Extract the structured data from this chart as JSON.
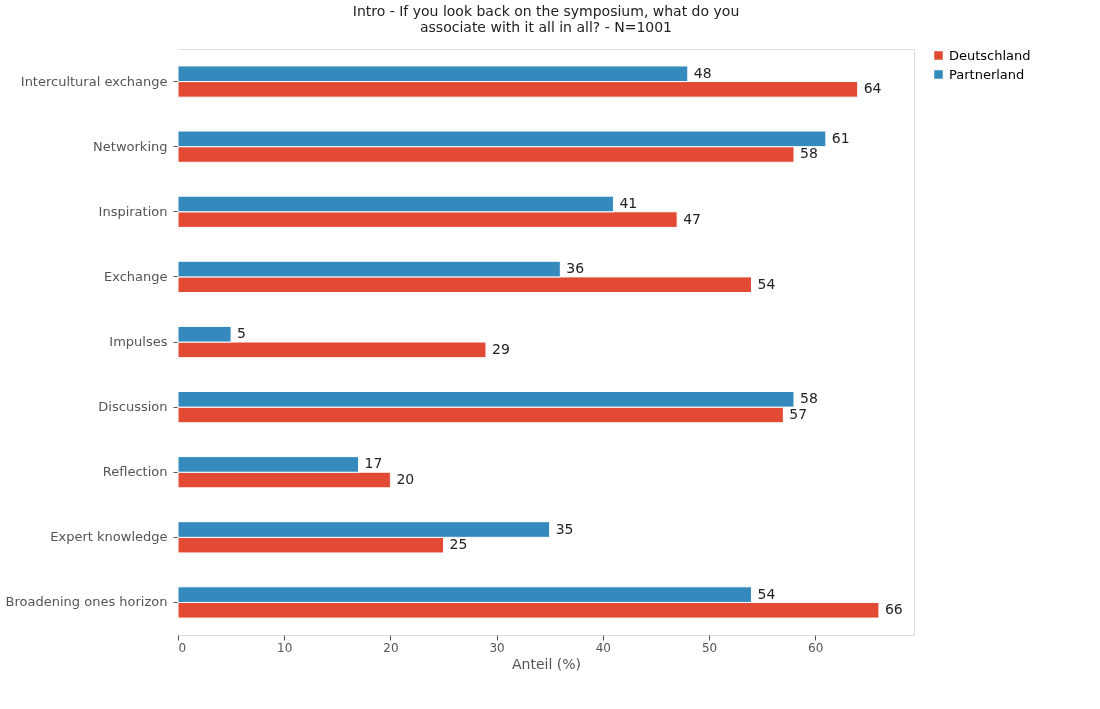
{
  "chart_data": {
    "type": "bar",
    "orientation": "horizontal",
    "title": "Intro - If you look back on the symposium, what do you associate with it all in all? - N=1001",
    "xlabel": "Anteil (%)",
    "categories": [
      "Intercultural exchange",
      "Networking",
      "Inspiration",
      "Exchange",
      "Impulses",
      "Discussion",
      "Reflection",
      "Expert knowledge",
      "Broadening ones horizon"
    ],
    "series": [
      {
        "name": "Deutschland",
        "color": "#e24a33",
        "values": [
          64,
          58,
          47,
          54,
          29,
          57,
          20,
          25,
          66
        ]
      },
      {
        "name": "Partnerland",
        "color": "#348abd",
        "values": [
          48,
          61,
          41,
          36,
          5,
          58,
          17,
          35,
          54
        ]
      }
    ],
    "xlim": [
      0,
      69.3
    ],
    "xticks": [
      0,
      10,
      20,
      30,
      40,
      50,
      60
    ],
    "grid": true,
    "legend": "top right",
    "data_labels": true
  }
}
